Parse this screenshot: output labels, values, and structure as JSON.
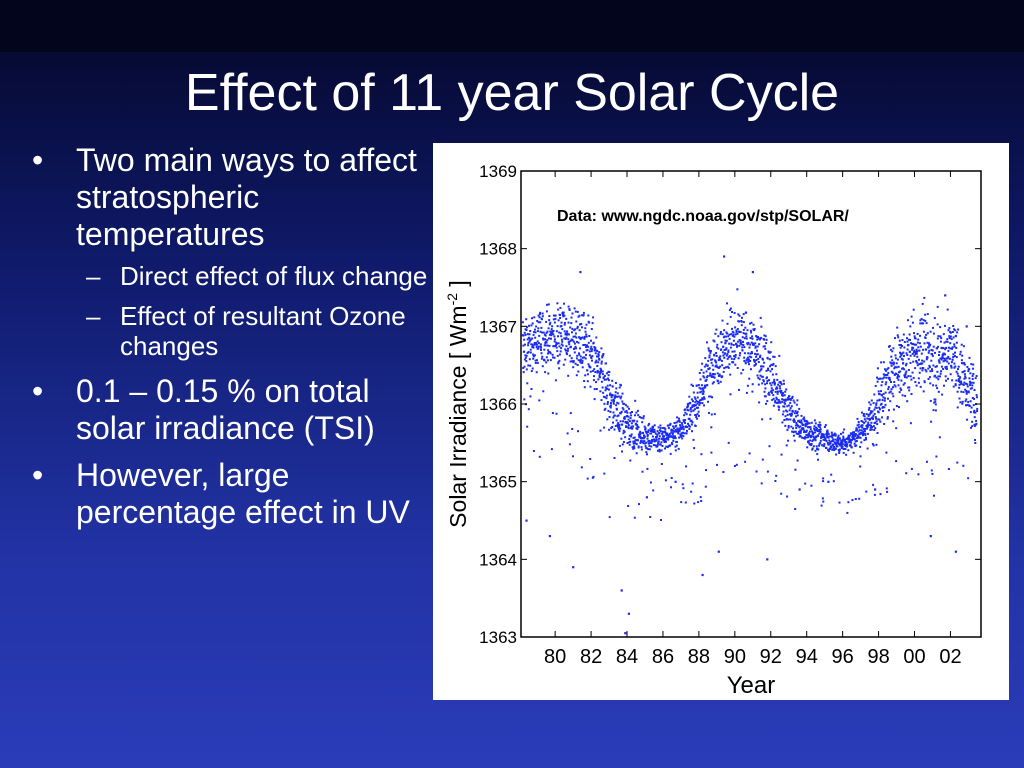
{
  "slide": {
    "title": "Effect of 11 year Solar Cycle",
    "bullets": [
      {
        "text": "Two main ways to affect stratospheric temperatures",
        "sub": [
          "Direct effect of flux change",
          "Effect of resultant Ozone changes"
        ]
      },
      {
        "text": "0.1 – 0.15 % on total solar irradiance (TSI)",
        "sub": []
      },
      {
        "text": "However, large percentage effect in UV",
        "sub": []
      }
    ],
    "bullet_glyph": "•",
    "dash_glyph": "–"
  },
  "chart_data": {
    "type": "scatter",
    "annotation": "Data:  www.ngdc.noaa.gov/stp/SOLAR/",
    "xlabel": "Year",
    "ylabel_main": "Solar Irradiance [ Wm",
    "ylabel_exp": "-2",
    "ylabel_end": " ]",
    "xlim": [
      1978.1,
      2003.7
    ],
    "ylim": [
      1363,
      1369
    ],
    "xticks": [
      1980,
      1982,
      1984,
      1986,
      1988,
      1990,
      1992,
      1994,
      1996,
      1998,
      2000,
      2002
    ],
    "xtick_labels": [
      "80",
      "82",
      "84",
      "86",
      "88",
      "90",
      "92",
      "94",
      "96",
      "98",
      "00",
      "02"
    ],
    "yticks": [
      1363,
      1364,
      1365,
      1366,
      1367,
      1368,
      1369
    ],
    "ytick_labels": [
      "1363",
      "1364",
      "1365",
      "1366",
      "1367",
      "1368",
      "1369"
    ],
    "grid": false,
    "marker_color": "#1a2cf0",
    "series": [
      {
        "x": [
          1978.2,
          1978.6,
          1979.0,
          1979.5,
          1980.0,
          1980.5,
          1981.0,
          1981.5,
          1982.0,
          1982.5,
          1983.0,
          1983.5,
          1984.0,
          1984.5,
          1985.0,
          1985.5,
          1986.0,
          1986.5,
          1987.0,
          1987.5,
          1988.0,
          1988.5,
          1989.0,
          1989.5,
          1990.0,
          1990.5,
          1991.0,
          1991.5,
          1992.0,
          1992.5,
          1993.0,
          1993.5,
          1994.0,
          1994.5,
          1995.0,
          1995.5,
          1996.0,
          1996.5,
          1997.0,
          1997.5,
          1998.0,
          1998.5,
          1999.0,
          1999.5,
          2000.0,
          2000.5,
          2001.0,
          2001.5,
          2002.0,
          2002.5,
          2003.0,
          2003.5
        ],
        "y_mean": [
          1366.7,
          1366.75,
          1366.8,
          1366.85,
          1366.9,
          1366.9,
          1366.85,
          1366.8,
          1366.6,
          1366.4,
          1366.1,
          1365.9,
          1365.75,
          1365.65,
          1365.6,
          1365.55,
          1365.55,
          1365.6,
          1365.7,
          1365.85,
          1366.1,
          1366.4,
          1366.65,
          1366.75,
          1366.8,
          1366.75,
          1366.7,
          1366.6,
          1366.35,
          1366.1,
          1365.9,
          1365.75,
          1365.65,
          1365.6,
          1365.55,
          1365.5,
          1365.5,
          1365.55,
          1365.65,
          1365.8,
          1366.0,
          1366.25,
          1366.45,
          1366.55,
          1366.65,
          1366.7,
          1366.55,
          1366.6,
          1366.7,
          1366.45,
          1366.2,
          1366.0
        ],
        "spread": [
          0.35,
          0.35,
          0.4,
          0.4,
          0.4,
          0.4,
          0.4,
          0.45,
          0.45,
          0.45,
          0.45,
          0.4,
          0.35,
          0.25,
          0.2,
          0.2,
          0.18,
          0.18,
          0.2,
          0.25,
          0.35,
          0.4,
          0.45,
          0.45,
          0.45,
          0.45,
          0.45,
          0.45,
          0.4,
          0.35,
          0.3,
          0.25,
          0.2,
          0.18,
          0.15,
          0.15,
          0.15,
          0.15,
          0.2,
          0.25,
          0.35,
          0.4,
          0.45,
          0.45,
          0.45,
          0.5,
          0.5,
          0.5,
          0.45,
          0.45,
          0.4,
          0.4
        ]
      }
    ],
    "outliers": [
      {
        "x": 1983.9,
        "y": 1363.05
      },
      {
        "x": 1984.1,
        "y": 1363.3
      },
      {
        "x": 1983.7,
        "y": 1363.6
      },
      {
        "x": 1981.0,
        "y": 1363.9
      },
      {
        "x": 1988.2,
        "y": 1363.8
      },
      {
        "x": 1989.1,
        "y": 1364.1
      },
      {
        "x": 1991.8,
        "y": 1364.0
      },
      {
        "x": 2002.3,
        "y": 1364.1
      },
      {
        "x": 1979.7,
        "y": 1364.3
      },
      {
        "x": 1978.4,
        "y": 1364.5
      },
      {
        "x": 1985.1,
        "y": 1364.8
      },
      {
        "x": 2000.9,
        "y": 1364.3
      },
      {
        "x": 1989.4,
        "y": 1367.9
      },
      {
        "x": 1991.0,
        "y": 1367.7
      },
      {
        "x": 1981.4,
        "y": 1367.7
      },
      {
        "x": 2001.7,
        "y": 1367.4
      },
      {
        "x": 2002.9,
        "y": 1367.0
      },
      {
        "x": 1993.6,
        "y": 1364.9
      },
      {
        "x": 1995.2,
        "y": 1365.0
      },
      {
        "x": 1997.8,
        "y": 1364.9
      },
      {
        "x": 1986.7,
        "y": 1365.0
      }
    ]
  }
}
